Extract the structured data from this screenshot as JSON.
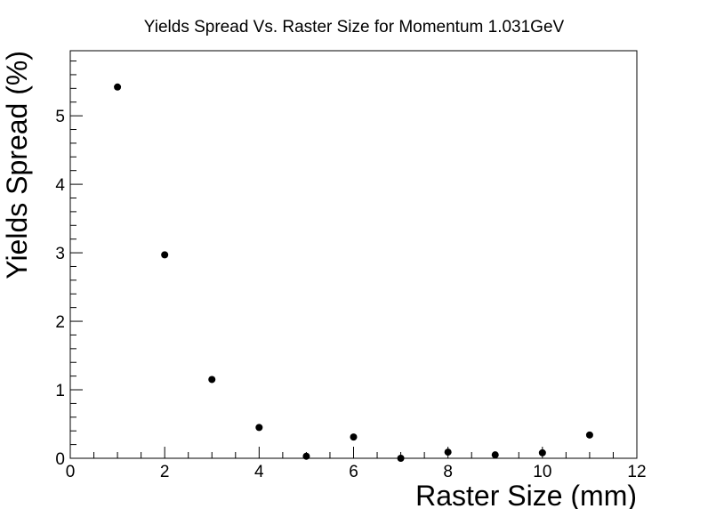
{
  "chart_data": {
    "type": "scatter",
    "title": "Yields Spread Vs. Raster Size for Momentum 1.031GeV",
    "xlabel": "Raster Size (mm)",
    "ylabel": "Yields Spread (%)",
    "xlim": [
      0,
      12
    ],
    "ylim": [
      0,
      5.95
    ],
    "x_ticks": [
      0,
      2,
      4,
      6,
      8,
      10,
      12
    ],
    "y_ticks": [
      0,
      1,
      2,
      3,
      4,
      5
    ],
    "grid": false,
    "legend": "none",
    "marker_color": "#000000",
    "series": [
      {
        "x": [
          1,
          2,
          3,
          4,
          5,
          6,
          7,
          8,
          9,
          10,
          11
        ],
        "y": [
          5.42,
          2.97,
          1.15,
          0.45,
          0.03,
          0.31,
          0.0,
          0.09,
          0.05,
          0.08,
          0.34
        ]
      }
    ]
  }
}
